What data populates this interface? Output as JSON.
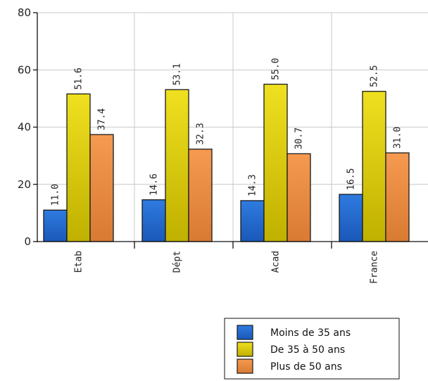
{
  "chart_data": {
    "type": "bar",
    "categories": [
      "Etab",
      "Dépt",
      "Acad",
      "France"
    ],
    "series": [
      {
        "name": "Moins de 35 ans",
        "values": [
          11.0,
          14.6,
          14.3,
          16.5
        ],
        "color": "#2f7be0",
        "color_dark": "#1a58b8"
      },
      {
        "name": "De 35 à 50 ans",
        "values": [
          51.6,
          53.1,
          55.0,
          52.5
        ],
        "color": "#efe020",
        "color_dark": "#c0b000"
      },
      {
        "name": "Plus de 50 ans",
        "values": [
          37.4,
          32.3,
          30.7,
          31.0
        ],
        "color": "#f59a50",
        "color_dark": "#d97a33"
      }
    ],
    "value_labels": [
      [
        "11.0",
        "14.6",
        "14.3",
        "16.5"
      ],
      [
        "51.6",
        "53.1",
        "55.0",
        "52.5"
      ],
      [
        "37.4",
        "32.3",
        "30.7",
        "31.0"
      ]
    ],
    "yticks": [
      "0",
      "20",
      "40",
      "60",
      "80"
    ],
    "ylim": [
      0,
      80
    ],
    "grid": true,
    "legend_position": "bottom-right",
    "title": "",
    "xlabel": "",
    "ylabel": ""
  }
}
